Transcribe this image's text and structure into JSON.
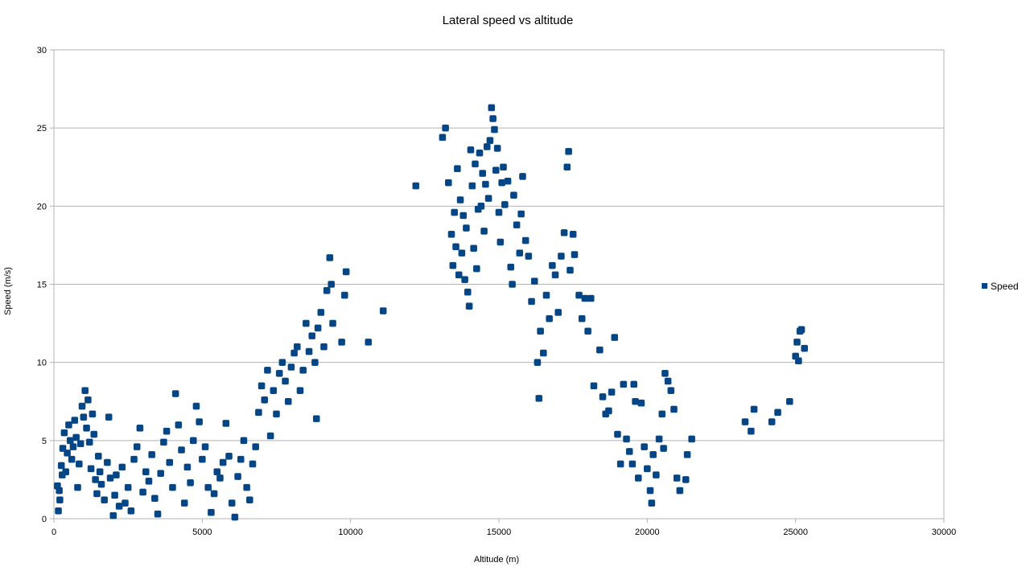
{
  "chart_data": {
    "type": "scatter",
    "title": "Lateral speed vs altitude",
    "xlabel": "Altitude (m)",
    "ylabel": "Speed (m/s)",
    "xlim": [
      0,
      30000
    ],
    "ylim": [
      0,
      30
    ],
    "xticks": [
      0,
      5000,
      10000,
      15000,
      20000,
      25000,
      30000
    ],
    "yticks": [
      0,
      5,
      10,
      15,
      20,
      25,
      30
    ],
    "grid": "horizontal",
    "legend_position": "right",
    "marker": "square",
    "series": [
      {
        "name": "Speed",
        "color": "#004586",
        "points": [
          [
            150,
            0.5
          ],
          [
            200,
            1.2
          ],
          [
            120,
            2.1
          ],
          [
            250,
            3.4
          ],
          [
            300,
            4.5
          ],
          [
            350,
            5.5
          ],
          [
            280,
            2.8
          ],
          [
            180,
            1.8
          ],
          [
            400,
            3.0
          ],
          [
            450,
            4.2
          ],
          [
            500,
            6.0
          ],
          [
            550,
            5.0
          ],
          [
            600,
            3.8
          ],
          [
            650,
            4.6
          ],
          [
            700,
            6.3
          ],
          [
            750,
            5.2
          ],
          [
            800,
            2.0
          ],
          [
            850,
            3.5
          ],
          [
            900,
            4.8
          ],
          [
            950,
            7.2
          ],
          [
            1000,
            6.5
          ],
          [
            1050,
            8.2
          ],
          [
            1100,
            5.8
          ],
          [
            1150,
            7.6
          ],
          [
            1200,
            4.9
          ],
          [
            1250,
            3.2
          ],
          [
            1300,
            6.7
          ],
          [
            1350,
            5.4
          ],
          [
            1400,
            2.5
          ],
          [
            1450,
            1.6
          ],
          [
            1500,
            4.0
          ],
          [
            1550,
            3.0
          ],
          [
            1600,
            2.2
          ],
          [
            1700,
            1.2
          ],
          [
            1800,
            3.6
          ],
          [
            1850,
            6.5
          ],
          [
            1900,
            2.6
          ],
          [
            2000,
            0.2
          ],
          [
            2050,
            1.5
          ],
          [
            2100,
            2.8
          ],
          [
            2200,
            0.8
          ],
          [
            2300,
            3.3
          ],
          [
            2400,
            1.0
          ],
          [
            2500,
            2.0
          ],
          [
            2600,
            0.5
          ],
          [
            2700,
            3.8
          ],
          [
            2800,
            4.6
          ],
          [
            2900,
            5.8
          ],
          [
            3000,
            1.7
          ],
          [
            3100,
            3.0
          ],
          [
            3200,
            2.4
          ],
          [
            3300,
            4.1
          ],
          [
            3400,
            1.3
          ],
          [
            3500,
            0.3
          ],
          [
            3600,
            2.9
          ],
          [
            3700,
            4.9
          ],
          [
            3800,
            5.6
          ],
          [
            3900,
            3.6
          ],
          [
            4000,
            2.0
          ],
          [
            4100,
            8.0
          ],
          [
            4200,
            6.0
          ],
          [
            4300,
            4.4
          ],
          [
            4400,
            1.0
          ],
          [
            4500,
            3.3
          ],
          [
            4600,
            2.3
          ],
          [
            4700,
            5.0
          ],
          [
            4800,
            7.2
          ],
          [
            4900,
            6.2
          ],
          [
            5000,
            3.8
          ],
          [
            5100,
            4.6
          ],
          [
            5200,
            2.0
          ],
          [
            5300,
            0.4
          ],
          [
            5400,
            1.6
          ],
          [
            5500,
            3.0
          ],
          [
            5600,
            2.6
          ],
          [
            5700,
            3.6
          ],
          [
            5800,
            6.1
          ],
          [
            5900,
            4.0
          ],
          [
            6000,
            1.0
          ],
          [
            6100,
            0.1
          ],
          [
            6200,
            2.7
          ],
          [
            6300,
            3.8
          ],
          [
            6400,
            5.0
          ],
          [
            6500,
            2.0
          ],
          [
            6600,
            1.2
          ],
          [
            6700,
            3.5
          ],
          [
            6800,
            4.6
          ],
          [
            6900,
            6.8
          ],
          [
            7000,
            8.5
          ],
          [
            7100,
            7.6
          ],
          [
            7200,
            9.5
          ],
          [
            7300,
            5.3
          ],
          [
            7400,
            8.2
          ],
          [
            7500,
            6.7
          ],
          [
            7600,
            9.3
          ],
          [
            7700,
            10.0
          ],
          [
            7800,
            8.8
          ],
          [
            7900,
            7.5
          ],
          [
            8000,
            9.7
          ],
          [
            8100,
            10.6
          ],
          [
            8200,
            11.0
          ],
          [
            8300,
            8.2
          ],
          [
            8400,
            9.5
          ],
          [
            8500,
            12.5
          ],
          [
            8600,
            10.7
          ],
          [
            8700,
            11.7
          ],
          [
            8800,
            10.0
          ],
          [
            8850,
            6.4
          ],
          [
            8900,
            12.2
          ],
          [
            9000,
            13.2
          ],
          [
            9100,
            11.0
          ],
          [
            9200,
            14.6
          ],
          [
            9300,
            16.7
          ],
          [
            9350,
            15.0
          ],
          [
            9400,
            12.5
          ],
          [
            9700,
            11.3
          ],
          [
            9800,
            14.3
          ],
          [
            9850,
            15.8
          ],
          [
            10600,
            11.3
          ],
          [
            11100,
            13.3
          ],
          [
            12200,
            21.3
          ],
          [
            13100,
            24.4
          ],
          [
            13200,
            25.0
          ],
          [
            13300,
            21.5
          ],
          [
            13400,
            18.2
          ],
          [
            13450,
            16.2
          ],
          [
            13500,
            19.6
          ],
          [
            13550,
            17.4
          ],
          [
            13600,
            22.4
          ],
          [
            13650,
            15.6
          ],
          [
            13700,
            20.4
          ],
          [
            13750,
            17.0
          ],
          [
            13800,
            19.4
          ],
          [
            13850,
            15.3
          ],
          [
            13900,
            18.6
          ],
          [
            13950,
            14.5
          ],
          [
            14000,
            13.6
          ],
          [
            14050,
            23.6
          ],
          [
            14100,
            21.3
          ],
          [
            14150,
            17.3
          ],
          [
            14200,
            22.7
          ],
          [
            14250,
            16.0
          ],
          [
            14300,
            19.8
          ],
          [
            14350,
            23.4
          ],
          [
            14400,
            20.0
          ],
          [
            14450,
            22.1
          ],
          [
            14500,
            18.4
          ],
          [
            14550,
            21.4
          ],
          [
            14600,
            23.8
          ],
          [
            14650,
            20.5
          ],
          [
            14700,
            24.2
          ],
          [
            14750,
            26.3
          ],
          [
            14800,
            25.6
          ],
          [
            14850,
            24.9
          ],
          [
            14900,
            22.3
          ],
          [
            14950,
            23.7
          ],
          [
            15000,
            19.6
          ],
          [
            15050,
            17.7
          ],
          [
            15100,
            21.5
          ],
          [
            15150,
            22.5
          ],
          [
            15200,
            20.1
          ],
          [
            15300,
            21.6
          ],
          [
            15400,
            16.1
          ],
          [
            15450,
            15.0
          ],
          [
            15500,
            20.7
          ],
          [
            15600,
            18.8
          ],
          [
            15700,
            17.0
          ],
          [
            15750,
            19.5
          ],
          [
            15800,
            21.9
          ],
          [
            15900,
            17.8
          ],
          [
            16000,
            16.8
          ],
          [
            16100,
            13.9
          ],
          [
            16200,
            15.2
          ],
          [
            16300,
            10.0
          ],
          [
            16350,
            7.7
          ],
          [
            16400,
            12.0
          ],
          [
            16500,
            10.6
          ],
          [
            16600,
            14.3
          ],
          [
            16700,
            12.8
          ],
          [
            16800,
            16.2
          ],
          [
            16900,
            15.6
          ],
          [
            17000,
            13.2
          ],
          [
            17100,
            16.8
          ],
          [
            17200,
            18.3
          ],
          [
            17300,
            22.5
          ],
          [
            17350,
            23.5
          ],
          [
            17400,
            15.9
          ],
          [
            17500,
            18.2
          ],
          [
            17550,
            16.9
          ],
          [
            17700,
            14.3
          ],
          [
            17800,
            12.8
          ],
          [
            17900,
            14.1
          ],
          [
            18000,
            12.0
          ],
          [
            18100,
            14.1
          ],
          [
            18200,
            8.5
          ],
          [
            18400,
            10.8
          ],
          [
            18500,
            7.8
          ],
          [
            18600,
            6.7
          ],
          [
            18700,
            6.9
          ],
          [
            18800,
            8.1
          ],
          [
            18900,
            11.6
          ],
          [
            19000,
            5.4
          ],
          [
            19100,
            3.5
          ],
          [
            19200,
            8.6
          ],
          [
            19300,
            5.1
          ],
          [
            19400,
            4.3
          ],
          [
            19500,
            3.5
          ],
          [
            19550,
            8.6
          ],
          [
            19600,
            7.5
          ],
          [
            19700,
            2.6
          ],
          [
            19800,
            7.4
          ],
          [
            19900,
            4.6
          ],
          [
            20000,
            3.2
          ],
          [
            20100,
            1.8
          ],
          [
            20150,
            1.0
          ],
          [
            20200,
            4.1
          ],
          [
            20300,
            2.8
          ],
          [
            20400,
            5.1
          ],
          [
            20500,
            6.7
          ],
          [
            20550,
            4.5
          ],
          [
            20600,
            9.3
          ],
          [
            20700,
            8.8
          ],
          [
            20800,
            8.2
          ],
          [
            20900,
            7.0
          ],
          [
            21000,
            2.6
          ],
          [
            21100,
            1.8
          ],
          [
            21300,
            2.5
          ],
          [
            21350,
            4.1
          ],
          [
            21500,
            5.1
          ],
          [
            23300,
            6.2
          ],
          [
            23500,
            5.6
          ],
          [
            23600,
            7.0
          ],
          [
            24200,
            6.2
          ],
          [
            24400,
            6.8
          ],
          [
            24800,
            7.5
          ],
          [
            25000,
            10.4
          ],
          [
            25050,
            11.3
          ],
          [
            25100,
            10.1
          ],
          [
            25150,
            12.0
          ],
          [
            25200,
            12.1
          ],
          [
            25300,
            10.9
          ]
        ]
      }
    ]
  }
}
